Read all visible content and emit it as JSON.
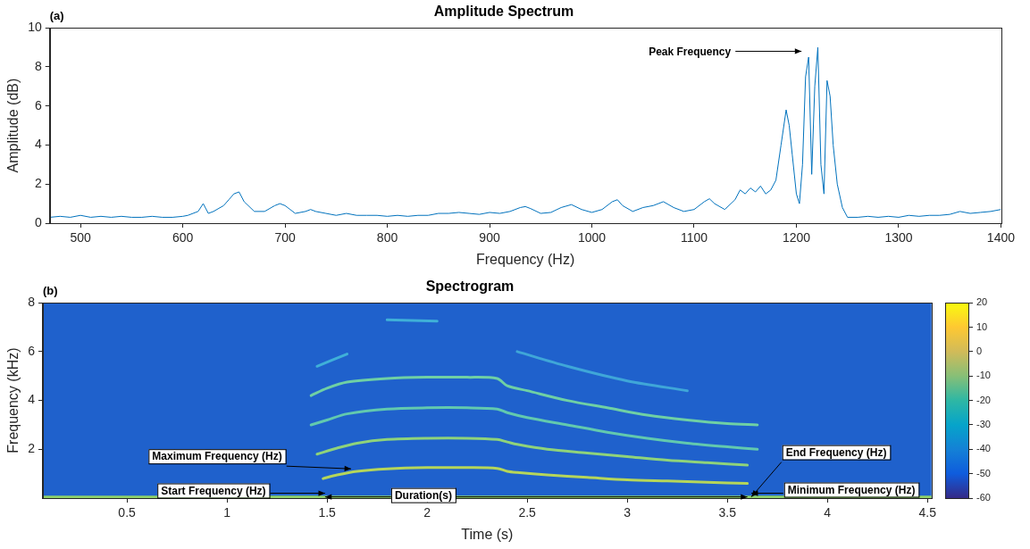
{
  "chart_data": [
    {
      "type": "line",
      "title": "Amplitude Spectrum",
      "panel_label": "(a)",
      "x_label": "Frequency (Hz)",
      "y_label": "Amplitude (dB)",
      "color": "#0072bd",
      "grid": false,
      "xlim": [
        470,
        1400
      ],
      "xticks": [
        500,
        600,
        700,
        800,
        900,
        1000,
        1100,
        1200,
        1300,
        1400
      ],
      "ylim": [
        0,
        10
      ],
      "yticks": [
        0,
        2,
        4,
        6,
        8,
        10
      ],
      "x": [
        470,
        480,
        490,
        500,
        510,
        520,
        530,
        540,
        550,
        560,
        570,
        580,
        590,
        600,
        605,
        610,
        615,
        620,
        625,
        630,
        640,
        645,
        650,
        655,
        660,
        670,
        680,
        690,
        695,
        700,
        705,
        710,
        720,
        725,
        730,
        740,
        750,
        760,
        770,
        780,
        790,
        800,
        810,
        820,
        830,
        840,
        850,
        860,
        870,
        880,
        890,
        900,
        910,
        920,
        930,
        935,
        940,
        950,
        960,
        970,
        980,
        990,
        1000,
        1010,
        1020,
        1025,
        1030,
        1040,
        1050,
        1060,
        1070,
        1080,
        1090,
        1100,
        1110,
        1115,
        1120,
        1130,
        1140,
        1145,
        1150,
        1155,
        1160,
        1165,
        1170,
        1175,
        1180,
        1185,
        1190,
        1193,
        1196,
        1200,
        1203,
        1206,
        1209,
        1212,
        1215,
        1218,
        1221,
        1224,
        1227,
        1230,
        1233,
        1236,
        1240,
        1245,
        1250,
        1260,
        1270,
        1280,
        1290,
        1300,
        1310,
        1320,
        1330,
        1340,
        1350,
        1360,
        1370,
        1380,
        1390,
        1400
      ],
      "values": [
        0.3,
        0.35,
        0.3,
        0.4,
        0.3,
        0.35,
        0.3,
        0.35,
        0.3,
        0.3,
        0.35,
        0.3,
        0.3,
        0.35,
        0.4,
        0.5,
        0.6,
        1.0,
        0.5,
        0.6,
        0.9,
        1.2,
        1.5,
        1.6,
        1.1,
        0.6,
        0.6,
        0.9,
        1.0,
        0.9,
        0.7,
        0.5,
        0.6,
        0.7,
        0.6,
        0.5,
        0.4,
        0.5,
        0.4,
        0.4,
        0.4,
        0.35,
        0.4,
        0.35,
        0.4,
        0.4,
        0.5,
        0.5,
        0.55,
        0.5,
        0.45,
        0.55,
        0.5,
        0.6,
        0.8,
        0.85,
        0.75,
        0.5,
        0.55,
        0.8,
        0.95,
        0.7,
        0.55,
        0.7,
        1.1,
        1.2,
        0.9,
        0.6,
        0.8,
        0.9,
        1.1,
        0.8,
        0.6,
        0.7,
        1.1,
        1.25,
        1.0,
        0.7,
        1.2,
        1.7,
        1.5,
        1.8,
        1.6,
        1.9,
        1.5,
        1.7,
        2.2,
        4.0,
        5.8,
        5.0,
        3.5,
        1.5,
        1.0,
        3.0,
        7.5,
        8.5,
        2.5,
        7.0,
        9.0,
        3.0,
        1.5,
        7.3,
        6.5,
        4.0,
        2.0,
        0.8,
        0.3,
        0.3,
        0.35,
        0.3,
        0.35,
        0.3,
        0.4,
        0.35,
        0.4,
        0.4,
        0.45,
        0.6,
        0.5,
        0.55,
        0.6,
        0.7
      ],
      "annotations": [
        {
          "text": "Peak Frequency",
          "x": 1205,
          "y": 8.8
        }
      ]
    },
    {
      "type": "spectrogram",
      "title": "Spectrogram",
      "panel_label": "(b)",
      "x_label": "Time (s)",
      "y_label": "Frequency (kHz)",
      "grid": false,
      "xlim": [
        0.08,
        4.52
      ],
      "xticks": [
        0.5,
        1,
        1.5,
        2,
        2.5,
        3,
        3.5,
        4,
        4.5
      ],
      "ylim": [
        0,
        8
      ],
      "yticks": [
        2,
        4,
        6,
        8
      ],
      "colorbar": {
        "range": [
          -60,
          20
        ],
        "ticks": [
          -60,
          -50,
          -40,
          -30,
          -20,
          -10,
          0,
          10,
          20
        ]
      },
      "series": [
        {
          "color": "#8fd16a",
          "x": [
            0.08,
            4.52
          ],
          "values": [
            0.05,
            0.05
          ]
        },
        {
          "color": "#b5d65a",
          "x": [
            1.48,
            1.55,
            1.65,
            1.8,
            2.0,
            2.2,
            2.35,
            2.4,
            2.45,
            2.6,
            2.8,
            3.0,
            3.2,
            3.4,
            3.6
          ],
          "values": [
            0.8,
            0.95,
            1.1,
            1.2,
            1.25,
            1.25,
            1.22,
            1.1,
            1.05,
            0.95,
            0.85,
            0.75,
            0.7,
            0.65,
            0.6
          ]
        },
        {
          "color": "#8fd37a",
          "x": [
            1.45,
            1.55,
            1.65,
            1.8,
            2.0,
            2.2,
            2.35,
            2.4,
            2.45,
            2.6,
            2.8,
            3.0,
            3.2,
            3.4,
            3.6
          ],
          "values": [
            1.8,
            2.05,
            2.25,
            2.4,
            2.45,
            2.45,
            2.4,
            2.3,
            2.2,
            2.0,
            1.85,
            1.7,
            1.55,
            1.45,
            1.35
          ]
        },
        {
          "color": "#62c9ae",
          "x": [
            1.42,
            1.5,
            1.6,
            1.8,
            2.0,
            2.2,
            2.35,
            2.4,
            2.5,
            2.7,
            2.9,
            3.1,
            3.3,
            3.5,
            3.65
          ],
          "values": [
            3.0,
            3.2,
            3.45,
            3.65,
            3.7,
            3.7,
            3.65,
            3.5,
            3.3,
            3.0,
            2.7,
            2.45,
            2.25,
            2.1,
            2.0
          ]
        },
        {
          "color": "#6fd0a4",
          "x": [
            1.42,
            1.5,
            1.6,
            1.8,
            2.0,
            2.2,
            2.35,
            2.4,
            2.5,
            2.7,
            2.9,
            3.1,
            3.3,
            3.5,
            3.65
          ],
          "values": [
            4.2,
            4.5,
            4.75,
            4.9,
            4.95,
            4.95,
            4.9,
            4.6,
            4.4,
            4.0,
            3.7,
            3.4,
            3.2,
            3.05,
            3.0
          ]
        },
        {
          "color": "#3fb0d8",
          "x": [
            1.45,
            1.6
          ],
          "values": [
            5.4,
            5.9
          ]
        },
        {
          "color": "#3fb0d8",
          "x": [
            1.8,
            2.05
          ],
          "values": [
            7.3,
            7.25
          ]
        },
        {
          "color": "#3fa6d8",
          "x": [
            2.45,
            2.7,
            3.0,
            3.3
          ],
          "values": [
            6.0,
            5.4,
            4.8,
            4.4
          ]
        }
      ],
      "annotations": [
        {
          "text": "Maximum Frequency (Hz)",
          "x": 1.62,
          "y": 1.2
        },
        {
          "text": "Start Frequency (Hz)",
          "x": 1.49,
          "y": 0.2
        },
        {
          "text": "Duration(s)",
          "x": [
            1.49,
            3.6
          ],
          "y": 0.05
        },
        {
          "text": "End Frequency (Hz)",
          "x": 3.62,
          "y": 0.05
        },
        {
          "text": "Minimum Frequency (Hz)",
          "x": 3.62,
          "y": 0.2
        }
      ]
    }
  ]
}
